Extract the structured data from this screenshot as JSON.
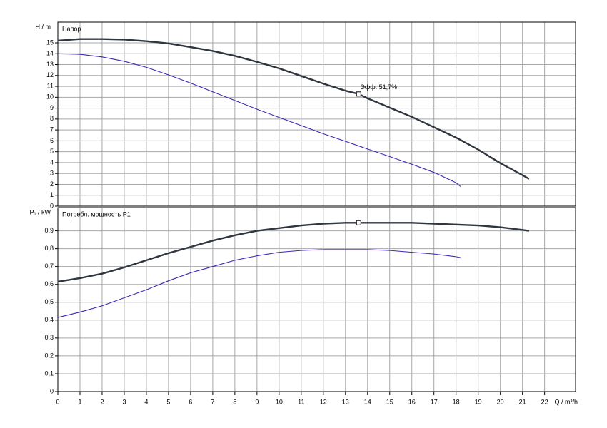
{
  "chart_data": [
    {
      "type": "line",
      "title": "Напор",
      "ylabel": "H / m",
      "xlim": [
        0,
        23.4
      ],
      "ylim": [
        0,
        16.9
      ],
      "yticks": [
        0,
        1,
        2,
        3,
        4,
        5,
        6,
        7,
        8,
        9,
        10,
        11,
        12,
        13,
        14,
        15
      ],
      "grid": true,
      "series": [
        {
          "color": "#2f3640",
          "x": [
            0,
            1,
            2,
            3,
            4,
            5,
            6,
            7,
            8,
            9,
            10,
            11,
            12,
            13,
            13.6,
            14,
            15,
            16,
            17,
            18,
            19,
            20,
            21,
            21.3
          ],
          "values": [
            15.2,
            15.35,
            15.35,
            15.3,
            15.15,
            14.95,
            14.6,
            14.25,
            13.8,
            13.25,
            12.65,
            11.95,
            11.25,
            10.6,
            10.3,
            9.9,
            9.05,
            8.2,
            7.25,
            6.3,
            5.2,
            3.95,
            2.85,
            2.5
          ]
        },
        {
          "color": "#3b28b4",
          "x": [
            0,
            1,
            2,
            3,
            4,
            5,
            6,
            7,
            8,
            9,
            10,
            11,
            12,
            13,
            14,
            15,
            16,
            17,
            18,
            18.2
          ],
          "values": [
            14.0,
            13.95,
            13.7,
            13.3,
            12.75,
            12.05,
            11.3,
            10.5,
            9.7,
            8.9,
            8.15,
            7.4,
            6.65,
            5.95,
            5.25,
            4.55,
            3.85,
            3.1,
            2.15,
            1.8
          ]
        }
      ],
      "annotation": {
        "text": "Эфф.  51,7%",
        "x": 13.6,
        "y": 10.3
      }
    },
    {
      "type": "line",
      "title": "Потребл. мощность P1",
      "ylabel": "P₁ / kW",
      "xlabel": "Q / m³/h",
      "xlim": [
        0,
        23.4
      ],
      "ylim": [
        0,
        1.03
      ],
      "xticks": [
        0,
        1,
        2,
        3,
        4,
        5,
        6,
        7,
        8,
        9,
        10,
        11,
        12,
        13,
        14,
        15,
        16,
        17,
        18,
        19,
        20,
        21,
        22
      ],
      "yticks": [
        0,
        {
          "value": 0.1,
          "label": "0,1"
        },
        {
          "value": 0.2,
          "label": "0,2"
        },
        {
          "value": 0.3,
          "label": "0,3"
        },
        {
          "value": 0.4,
          "label": "0,4"
        },
        {
          "value": 0.5,
          "label": "0,5"
        },
        {
          "value": 0.6,
          "label": "0,6"
        },
        {
          "value": 0.7,
          "label": "0,7"
        },
        {
          "value": 0.8,
          "label": "0,8"
        },
        {
          "value": 0.9,
          "label": "0,9"
        }
      ],
      "grid": true,
      "series": [
        {
          "color": "#2f3640",
          "x": [
            0,
            1,
            2,
            3,
            4,
            5,
            6,
            7,
            8,
            9,
            10,
            11,
            12,
            13,
            14,
            15,
            16,
            17,
            18,
            19,
            20,
            21,
            21.3
          ],
          "values": [
            0.615,
            0.635,
            0.66,
            0.695,
            0.735,
            0.775,
            0.81,
            0.845,
            0.875,
            0.9,
            0.915,
            0.93,
            0.94,
            0.945,
            0.945,
            0.945,
            0.945,
            0.94,
            0.935,
            0.93,
            0.92,
            0.905,
            0.9
          ]
        },
        {
          "color": "#3b28b4",
          "x": [
            0,
            1,
            2,
            3,
            4,
            5,
            6,
            7,
            8,
            9,
            10,
            11,
            12,
            13,
            14,
            15,
            16,
            17,
            18,
            18.2
          ],
          "values": [
            0.415,
            0.445,
            0.48,
            0.525,
            0.57,
            0.62,
            0.665,
            0.7,
            0.735,
            0.76,
            0.78,
            0.79,
            0.795,
            0.795,
            0.795,
            0.79,
            0.78,
            0.77,
            0.755,
            0.75
          ]
        }
      ],
      "marker": {
        "x": 13.6,
        "y": 0.945
      }
    }
  ]
}
